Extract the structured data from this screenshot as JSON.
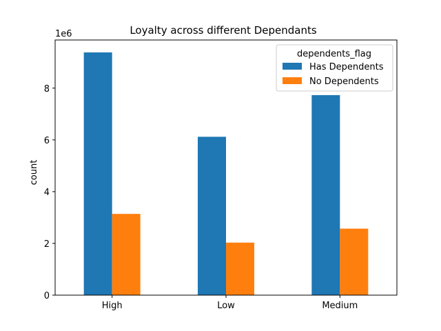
{
  "chart_data": {
    "type": "bar",
    "title": "Loyalty across different Dependants",
    "xlabel": "",
    "ylabel": "count",
    "y_offset_text": "1e6",
    "categories": [
      "High",
      "Low",
      "Medium"
    ],
    "series": [
      {
        "name": "Has Dependents",
        "color": "#1f77b4",
        "values": [
          9380000,
          6120000,
          7730000
        ]
      },
      {
        "name": "No Dependents",
        "color": "#ff7f0e",
        "values": [
          3140000,
          2030000,
          2570000
        ]
      }
    ],
    "ylim": [
      0,
      9860000
    ],
    "yticks": [
      0,
      2000000,
      4000000,
      6000000,
      8000000
    ],
    "ytick_labels": [
      "0",
      "2",
      "4",
      "6",
      "8"
    ],
    "legend": {
      "title": "dependents_flag",
      "placement": "top-right"
    },
    "grid": false
  }
}
